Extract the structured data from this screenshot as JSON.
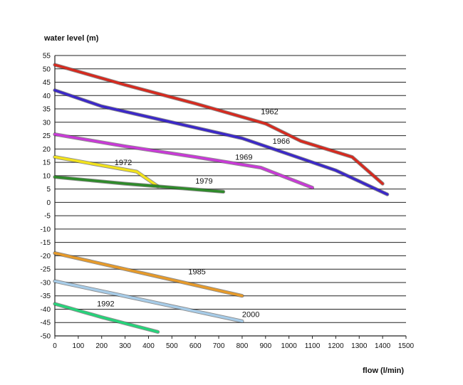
{
  "chart_data": {
    "type": "line",
    "title": "",
    "xlabel": "flow (l/min)",
    "ylabel": "water level (m)",
    "xlim": [
      0,
      1500
    ],
    "ylim": [
      -50,
      55
    ],
    "x_ticks": [
      0,
      100,
      200,
      300,
      400,
      500,
      600,
      700,
      800,
      900,
      1000,
      1100,
      1200,
      1300,
      1400,
      1500
    ],
    "y_ticks": [
      55,
      50,
      45,
      40,
      35,
      30,
      25,
      20,
      15,
      10,
      5,
      0,
      -5,
      -10,
      -15,
      -20,
      -25,
      -30,
      -35,
      -40,
      -45,
      -50
    ],
    "grid": "horizontal",
    "legend": "none (series labelled inline)",
    "series": [
      {
        "name": "1962",
        "color": "#d62a1f",
        "label_at": [
          880,
          33
        ],
        "points": [
          [
            0,
            51.5
          ],
          [
            100,
            49
          ],
          [
            300,
            44
          ],
          [
            600,
            37
          ],
          [
            900,
            29.5
          ],
          [
            1050,
            23
          ],
          [
            1270,
            17
          ],
          [
            1400,
            7
          ]
        ]
      },
      {
        "name": "1966",
        "color": "#3b28c8",
        "label_at": [
          930,
          22
        ],
        "points": [
          [
            0,
            42
          ],
          [
            200,
            36
          ],
          [
            500,
            30
          ],
          [
            800,
            24
          ],
          [
            1000,
            18
          ],
          [
            1200,
            12
          ],
          [
            1420,
            3
          ]
        ]
      },
      {
        "name": "1969",
        "color": "#c83ad6",
        "label_at": [
          770,
          16
        ],
        "points": [
          [
            0,
            25.5
          ],
          [
            300,
            21
          ],
          [
            600,
            17
          ],
          [
            880,
            13
          ],
          [
            1100,
            5.5
          ]
        ]
      },
      {
        "name": "1972",
        "color": "#f2e21c",
        "label_at": [
          255,
          14
        ],
        "points": [
          [
            0,
            17
          ],
          [
            350,
            11.5
          ],
          [
            440,
            6
          ]
        ]
      },
      {
        "name": "1979",
        "color": "#2e8a2a",
        "label_at": [
          600,
          7
        ],
        "points": [
          [
            0,
            9.5
          ],
          [
            300,
            7
          ],
          [
            720,
            4
          ]
        ]
      },
      {
        "name": "1985",
        "color": "#e69a2a",
        "label_at": [
          570,
          -27
        ],
        "points": [
          [
            0,
            -19
          ],
          [
            400,
            -27
          ],
          [
            800,
            -35
          ]
        ]
      },
      {
        "name": "1992",
        "color": "#26d37a",
        "label_at": [
          180,
          -39
        ],
        "points": [
          [
            0,
            -38
          ],
          [
            200,
            -43
          ],
          [
            440,
            -48.5
          ]
        ]
      },
      {
        "name": "2000",
        "color": "#a7cce8",
        "label_at": [
          800,
          -43
        ],
        "points": [
          [
            0,
            -29.5
          ],
          [
            400,
            -37
          ],
          [
            800,
            -44.5
          ]
        ]
      }
    ]
  }
}
